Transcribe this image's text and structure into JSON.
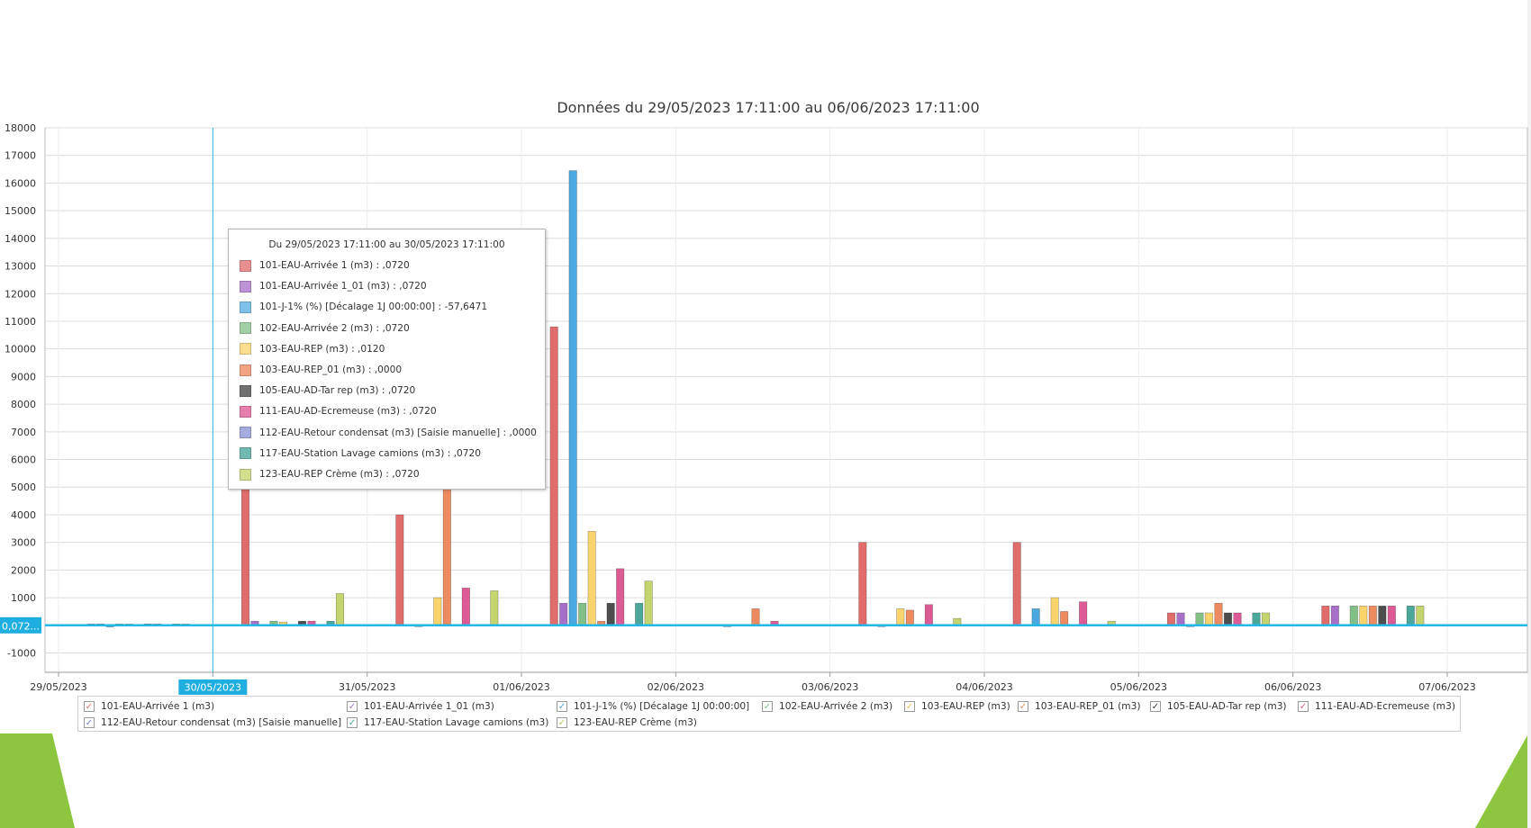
{
  "chart_data": {
    "type": "bar",
    "title": "Données du 29/05/2023 17:11:00 au 06/06/2023 17:11:00",
    "x_tick_labels": [
      "29/05/2023",
      "30/05/2023",
      "31/05/2023",
      "01/06/2023",
      "02/06/2023",
      "03/06/2023",
      "04/06/2023",
      "05/06/2023",
      "06/06/2023",
      "07/06/2023"
    ],
    "y_ticks": [
      -1000,
      0,
      1000,
      2000,
      3000,
      4000,
      5000,
      6000,
      7000,
      8000,
      9000,
      10000,
      11000,
      12000,
      13000,
      14000,
      15000,
      16000,
      17000,
      18000
    ],
    "y_tick_labels": [
      "-1000",
      "",
      "1000",
      "2000",
      "3000",
      "4000",
      "5000",
      "6000",
      "7000",
      "8000",
      "9000",
      "10000",
      "11000",
      "12000",
      "13000",
      "14000",
      "15000",
      "16000",
      "17000",
      "18000"
    ],
    "ylim": [
      -1700,
      18000
    ],
    "grid": true,
    "legend_position": "bottom",
    "categories": [
      "29/05/2023 17:11:00",
      "30/05/2023 17:11:00",
      "31/05/2023 17:11:00",
      "01/06/2023 17:11:00",
      "02/06/2023 17:11:00",
      "03/06/2023 17:11:00",
      "04/06/2023 17:11:00",
      "05/06/2023 17:11:00",
      "06/06/2023 17:11:00"
    ],
    "series": [
      {
        "name": "101-EAU-Arrivée 1 (m3)",
        "color": "#e06c6c",
        "values": [
          0.072,
          5000,
          4000,
          10800,
          0,
          3000,
          3000,
          450,
          700
        ]
      },
      {
        "name": "101-EAU-Arrivée 1_01 (m3)",
        "color": "#a770c8",
        "values": [
          0.072,
          150,
          0,
          800,
          0,
          0,
          0,
          450,
          700
        ]
      },
      {
        "name": "101-J-1% (%) [Décalage 1J 00:00:00]",
        "color": "#4aa9e0",
        "values": [
          -57.6471,
          0,
          -40,
          16450,
          -50,
          -40,
          600,
          -40,
          0
        ]
      },
      {
        "name": "102-EAU-Arrivée 2 (m3)",
        "color": "#82c087",
        "values": [
          0.072,
          150,
          0,
          800,
          0,
          0,
          0,
          450,
          700
        ]
      },
      {
        "name": "103-EAU-REP (m3)",
        "color": "#f9d36b",
        "values": [
          0.012,
          120,
          1000,
          3400,
          0,
          600,
          1000,
          450,
          700
        ]
      },
      {
        "name": "103-EAU-REP_01 (m3)",
        "color": "#ee8a5f",
        "values": [
          0,
          0,
          5000,
          150,
          600,
          550,
          500,
          800,
          700
        ]
      },
      {
        "name": "105-EAU-AD-Tar rep (m3)",
        "color": "#4d4d4d",
        "values": [
          0.072,
          150,
          0,
          800,
          0,
          0,
          0,
          450,
          700
        ]
      },
      {
        "name": "111-EAU-AD-Ecremeuse (m3)",
        "color": "#dd5a94",
        "values": [
          0.072,
          150,
          1350,
          2050,
          150,
          750,
          850,
          450,
          700
        ]
      },
      {
        "name": "112-EAU-Retour condensat (m3) [Saisie manuelle]",
        "color": "#8b93d8",
        "values": [
          0,
          0,
          0,
          0,
          0,
          0,
          0,
          0,
          0
        ]
      },
      {
        "name": "117-EAU-Station Lavage camions (m3)",
        "color": "#4aa79a",
        "values": [
          0.072,
          150,
          0,
          800,
          0,
          0,
          0,
          450,
          700
        ]
      },
      {
        "name": "123-EAU-REP Crème (m3)",
        "color": "#c4d46f",
        "values": [
          0.072,
          1150,
          1250,
          1600,
          0,
          250,
          150,
          450,
          700
        ]
      }
    ],
    "cursor_x_label": "30/05/2023",
    "cursor_y_label": "0,072..."
  },
  "tooltip": {
    "title": "Du 29/05/2023 17:11:00 au 30/05/2023 17:11:00",
    "rows": [
      {
        "text": "101-EAU-Arrivée 1 (m3) : ,0720",
        "color": "#e98f8f"
      },
      {
        "text": "101-EAU-Arrivée 1_01 (m3) : ,0720",
        "color": "#bc91d6"
      },
      {
        "text": "101-J-1% (%) [Décalage 1J 00:00:00] : -57,6471",
        "color": "#7ec1ea"
      },
      {
        "text": "102-EAU-Arrivée 2 (m3) : ,0720",
        "color": "#a3cfa7"
      },
      {
        "text": "103-EAU-REP (m3) : ,0120",
        "color": "#fbdf90"
      },
      {
        "text": "103-EAU-REP_01 (m3) : ,0000",
        "color": "#f2a383"
      },
      {
        "text": "105-EAU-AD-Tar rep (m3) : ,0720",
        "color": "#707070"
      },
      {
        "text": "111-EAU-AD-Ecremeuse (m3) : ,0720",
        "color": "#e57dad"
      },
      {
        "text": "112-EAU-Retour condensat (m3) [Saisie manuelle] : ,0000",
        "color": "#a6abe0"
      },
      {
        "text": "117-EAU-Station Lavage camions (m3) : ,0720",
        "color": "#6fb9ae"
      },
      {
        "text": "123-EAU-REP Crème (m3) : ,0720",
        "color": "#d3df8f"
      }
    ]
  },
  "legend": {
    "items": [
      {
        "label": "101-EAU-Arrivée 1 (m3)",
        "check": "✓",
        "color": "#e06c6c"
      },
      {
        "label": "101-EAU-Arrivée 1_01 (m3)",
        "check": "✓",
        "color": "#a770c8"
      },
      {
        "label": "101-J-1% (%) [Décalage 1J 00:00:00]",
        "check": "✓",
        "color": "#4aa9e0"
      },
      {
        "label": "102-EAU-Arrivée 2 (m3)",
        "check": "✓",
        "color": "#82c087"
      },
      {
        "label": "103-EAU-REP (m3)",
        "check": "✓",
        "color": "#f0c24a"
      },
      {
        "label": "103-EAU-REP_01 (m3)",
        "check": "✓",
        "color": "#ee8a5f"
      },
      {
        "label": "105-EAU-AD-Tar rep (m3)",
        "check": "✓",
        "color": "#3a3a3a"
      },
      {
        "label": "111-EAU-AD-Ecremeuse (m3)",
        "check": "✓",
        "color": "#dd5a94"
      },
      {
        "label": "112-EAU-Retour condensat (m3) [Saisie manuelle]",
        "check": "✓",
        "color": "#7c84cf"
      },
      {
        "label": "117-EAU-Station Lavage camions (m3)",
        "check": "✓",
        "color": "#4aa79a"
      },
      {
        "label": "123-EAU-REP Crème (m3)",
        "check": "✓",
        "color": "#b9c85c"
      }
    ]
  }
}
